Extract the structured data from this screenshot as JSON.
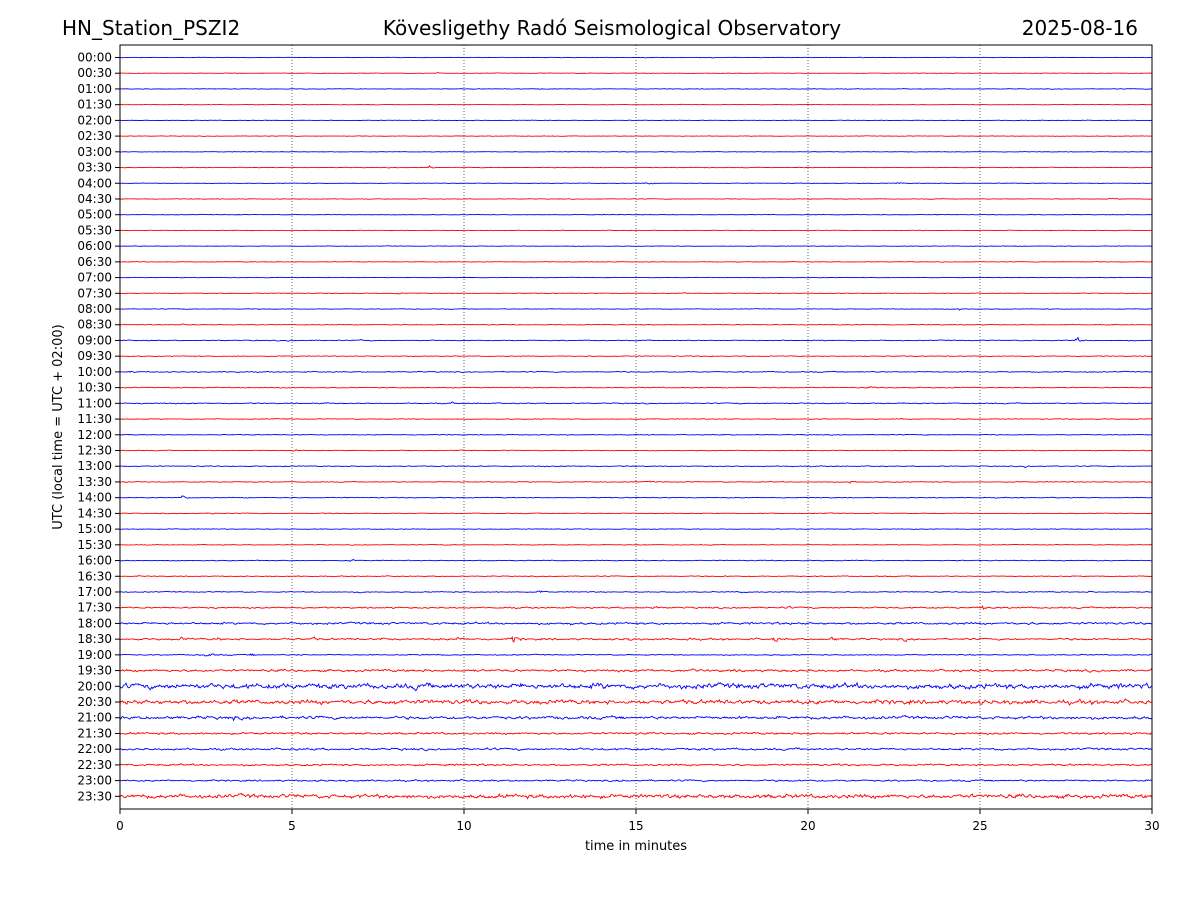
{
  "header": {
    "station": "HN_Station_PSZI2",
    "observatory": "Kövesligethy Radó Seismological Observatory",
    "date": "2025-08-16"
  },
  "chart_data": {
    "type": "line",
    "title": "Kövesligethy Radó Seismological Observatory",
    "xlabel": "time in minutes",
    "ylabel": "UTC (local time = UTC + 02:00)",
    "xlim": [
      0,
      30
    ],
    "x_ticks": [
      0,
      5,
      10,
      15,
      20,
      25,
      30
    ],
    "x_tick_labels": [
      "0",
      "5",
      "10",
      "15",
      "20",
      "25",
      "30"
    ],
    "grid": "vertical dotted at 5, 10, 15, 20, 25",
    "trace_colors": [
      "#0000ff",
      "#ff0000"
    ],
    "rows": [
      {
        "label": "00:00",
        "color": "#0000ff",
        "noise": 0.3,
        "events": [
          [
            17.2,
            0.8
          ]
        ]
      },
      {
        "label": "00:30",
        "color": "#ff0000",
        "noise": 0.3,
        "events": [
          [
            9.2,
            1.0
          ]
        ]
      },
      {
        "label": "01:00",
        "color": "#0000ff",
        "noise": 0.35,
        "events": []
      },
      {
        "label": "01:30",
        "color": "#ff0000",
        "noise": 0.3,
        "events": []
      },
      {
        "label": "02:00",
        "color": "#0000ff",
        "noise": 0.3,
        "events": [
          [
            26.0,
            1.2
          ]
        ]
      },
      {
        "label": "02:30",
        "color": "#ff0000",
        "noise": 0.3,
        "events": []
      },
      {
        "label": "03:00",
        "color": "#0000ff",
        "noise": 0.3,
        "events": []
      },
      {
        "label": "03:30",
        "color": "#ff0000",
        "noise": 0.35,
        "events": [
          [
            9.0,
            2.0
          ],
          [
            20.1,
            1.0
          ]
        ]
      },
      {
        "label": "04:00",
        "color": "#0000ff",
        "noise": 0.3,
        "events": [
          [
            15.3,
            2.0
          ],
          [
            22.6,
            1.0
          ]
        ]
      },
      {
        "label": "04:30",
        "color": "#ff0000",
        "noise": 0.35,
        "events": [
          [
            28.8,
            1.8
          ],
          [
            27.2,
            1.0
          ]
        ]
      },
      {
        "label": "05:00",
        "color": "#0000ff",
        "noise": 0.3,
        "events": []
      },
      {
        "label": "05:30",
        "color": "#ff0000",
        "noise": 0.3,
        "events": [
          [
            25.8,
            0.8
          ]
        ]
      },
      {
        "label": "06:00",
        "color": "#0000ff",
        "noise": 0.3,
        "events": []
      },
      {
        "label": "06:30",
        "color": "#ff0000",
        "noise": 0.3,
        "events": [
          [
            14.1,
            0.8
          ],
          [
            27.4,
            0.8
          ]
        ]
      },
      {
        "label": "07:00",
        "color": "#0000ff",
        "noise": 0.3,
        "events": []
      },
      {
        "label": "07:30",
        "color": "#ff0000",
        "noise": 0.35,
        "events": [
          [
            8.0,
            1.8
          ],
          [
            16.4,
            1.0
          ]
        ]
      },
      {
        "label": "08:00",
        "color": "#0000ff",
        "noise": 0.35,
        "events": [
          [
            24.4,
            2.2
          ],
          [
            27.0,
            0.8
          ]
        ]
      },
      {
        "label": "08:30",
        "color": "#ff0000",
        "noise": 0.4,
        "events": [
          [
            1.8,
            1.5
          ]
        ]
      },
      {
        "label": "09:00",
        "color": "#0000ff",
        "noise": 0.5,
        "events": [
          [
            4.9,
            1.6
          ],
          [
            7.0,
            1.6
          ],
          [
            27.8,
            3.5
          ]
        ]
      },
      {
        "label": "09:30",
        "color": "#ff0000",
        "noise": 0.45,
        "events": [
          [
            21.6,
            1.4
          ],
          [
            26.2,
            0.8
          ]
        ]
      },
      {
        "label": "10:00",
        "color": "#0000ff",
        "noise": 0.55,
        "events": [
          [
            0.3,
            1.5
          ],
          [
            3.4,
            1.2
          ]
        ]
      },
      {
        "label": "10:30",
        "color": "#ff0000",
        "noise": 0.55,
        "events": [
          [
            21.8,
            1.6
          ]
        ]
      },
      {
        "label": "11:00",
        "color": "#0000ff",
        "noise": 0.6,
        "events": [
          [
            6.0,
            1.4
          ],
          [
            9.6,
            2.0
          ],
          [
            22.4,
            1.2
          ]
        ]
      },
      {
        "label": "11:30",
        "color": "#ff0000",
        "noise": 0.45,
        "events": [
          [
            21.5,
            1.0
          ],
          [
            22.7,
            1.2
          ]
        ]
      },
      {
        "label": "12:00",
        "color": "#0000ff",
        "noise": 0.4,
        "events": [
          [
            17.8,
            0.8
          ],
          [
            25.0,
            1.0
          ]
        ]
      },
      {
        "label": "12:30",
        "color": "#ff0000",
        "noise": 0.45,
        "events": [
          [
            5.0,
            2.0
          ]
        ]
      },
      {
        "label": "13:00",
        "color": "#0000ff",
        "noise": 0.5,
        "events": [
          [
            20.0,
            1.2
          ],
          [
            26.3,
            2.0
          ]
        ]
      },
      {
        "label": "13:30",
        "color": "#ff0000",
        "noise": 0.5,
        "events": [
          [
            0.2,
            1.4
          ],
          [
            15.4,
            1.4
          ],
          [
            21.2,
            3.5
          ]
        ]
      },
      {
        "label": "14:00",
        "color": "#0000ff",
        "noise": 0.45,
        "events": [
          [
            1.8,
            2.8
          ],
          [
            27.2,
            1.2
          ]
        ]
      },
      {
        "label": "14:30",
        "color": "#ff0000",
        "noise": 0.45,
        "events": [
          [
            2.7,
            1.8
          ],
          [
            7.6,
            0.8
          ]
        ]
      },
      {
        "label": "15:00",
        "color": "#0000ff",
        "noise": 0.4,
        "events": [
          [
            1.6,
            0.8
          ]
        ]
      },
      {
        "label": "15:30",
        "color": "#ff0000",
        "noise": 0.4,
        "events": [
          [
            9.6,
            1.6
          ]
        ]
      },
      {
        "label": "16:00",
        "color": "#0000ff",
        "noise": 0.5,
        "events": [
          [
            6.7,
            1.8
          ],
          [
            18.0,
            0.8
          ]
        ]
      },
      {
        "label": "16:30",
        "color": "#ff0000",
        "noise": 0.5,
        "events": [
          [
            0.5,
            1.0
          ],
          [
            17.5,
            1.6
          ],
          [
            23.0,
            1.0
          ]
        ]
      },
      {
        "label": "17:00",
        "color": "#0000ff",
        "noise": 0.55,
        "events": [
          [
            6.9,
            2.0
          ],
          [
            12.2,
            2.6
          ],
          [
            18.1,
            2.0
          ],
          [
            28.2,
            1.6
          ]
        ]
      },
      {
        "label": "17:30",
        "color": "#ff0000",
        "noise": 0.9,
        "events": [
          [
            15.5,
            3.0
          ],
          [
            19.4,
            2.4
          ],
          [
            25.1,
            3.5
          ],
          [
            28.8,
            2.2
          ],
          [
            12.0,
            1.4
          ]
        ]
      },
      {
        "label": "18:00",
        "color": "#0000ff",
        "noise": 1.3,
        "events": [
          [
            1.5,
            2.6
          ],
          [
            13.1,
            2.2
          ],
          [
            28.6,
            3.0
          ],
          [
            26.4,
            2.0
          ]
        ]
      },
      {
        "label": "18:30",
        "color": "#ff0000",
        "noise": 1.1,
        "events": [
          [
            1.8,
            4.0
          ],
          [
            2.8,
            3.0
          ],
          [
            4.8,
            3.5
          ],
          [
            5.6,
            3.0
          ],
          [
            7.6,
            3.0
          ],
          [
            9.8,
            4.0
          ],
          [
            11.4,
            6.0
          ],
          [
            14.8,
            3.5
          ],
          [
            16.5,
            3.0
          ],
          [
            19.0,
            5.5
          ],
          [
            20.7,
            3.5
          ],
          [
            22.8,
            2.5
          ]
        ]
      },
      {
        "label": "19:00",
        "color": "#0000ff",
        "noise": 0.6,
        "events": [
          [
            2.5,
            4.0
          ],
          [
            3.8,
            2.2
          ],
          [
            5.2,
            2.4
          ],
          [
            8.8,
            2.0
          ]
        ]
      },
      {
        "label": "19:30",
        "color": "#ff0000",
        "noise": 1.4,
        "events": [
          [
            15.4,
            3.0
          ],
          [
            16.6,
            3.0
          ],
          [
            18.1,
            3.0
          ],
          [
            28.4,
            3.0
          ]
        ]
      },
      {
        "label": "20:00",
        "color": "#0000ff",
        "noise": 3.2,
        "events": [
          [
            1.5,
            4.0
          ],
          [
            8.6,
            6.0
          ],
          [
            11.6,
            5.0
          ],
          [
            13.9,
            6.5
          ],
          [
            27.0,
            4.0
          ]
        ]
      },
      {
        "label": "20:30",
        "color": "#ff0000",
        "noise": 2.6,
        "events": [
          [
            8.0,
            4.5
          ],
          [
            13.8,
            4.0
          ],
          [
            25.0,
            4.0
          ]
        ]
      },
      {
        "label": "21:00",
        "color": "#0000ff",
        "noise": 1.8,
        "events": [
          [
            0.8,
            3.0
          ],
          [
            3.3,
            3.0
          ],
          [
            5.8,
            2.2
          ]
        ]
      },
      {
        "label": "21:30",
        "color": "#ff0000",
        "noise": 1.2,
        "events": [
          [
            20.0,
            2.6
          ],
          [
            22.5,
            2.0
          ]
        ]
      },
      {
        "label": "22:00",
        "color": "#0000ff",
        "noise": 1.3,
        "events": [
          [
            25.4,
            2.6
          ],
          [
            26.6,
            2.0
          ]
        ]
      },
      {
        "label": "22:30",
        "color": "#ff0000",
        "noise": 1.1,
        "events": [
          [
            10.4,
            1.6
          ]
        ]
      },
      {
        "label": "23:00",
        "color": "#0000ff",
        "noise": 1.0,
        "events": [
          [
            14.6,
            1.8
          ],
          [
            28.0,
            2.4
          ]
        ]
      },
      {
        "label": "23:30",
        "color": "#ff0000",
        "noise": 2.4,
        "events": [
          [
            13.3,
            3.0
          ],
          [
            19.2,
            3.0
          ],
          [
            25.2,
            3.0
          ],
          [
            29.5,
            3.0
          ]
        ]
      }
    ]
  }
}
